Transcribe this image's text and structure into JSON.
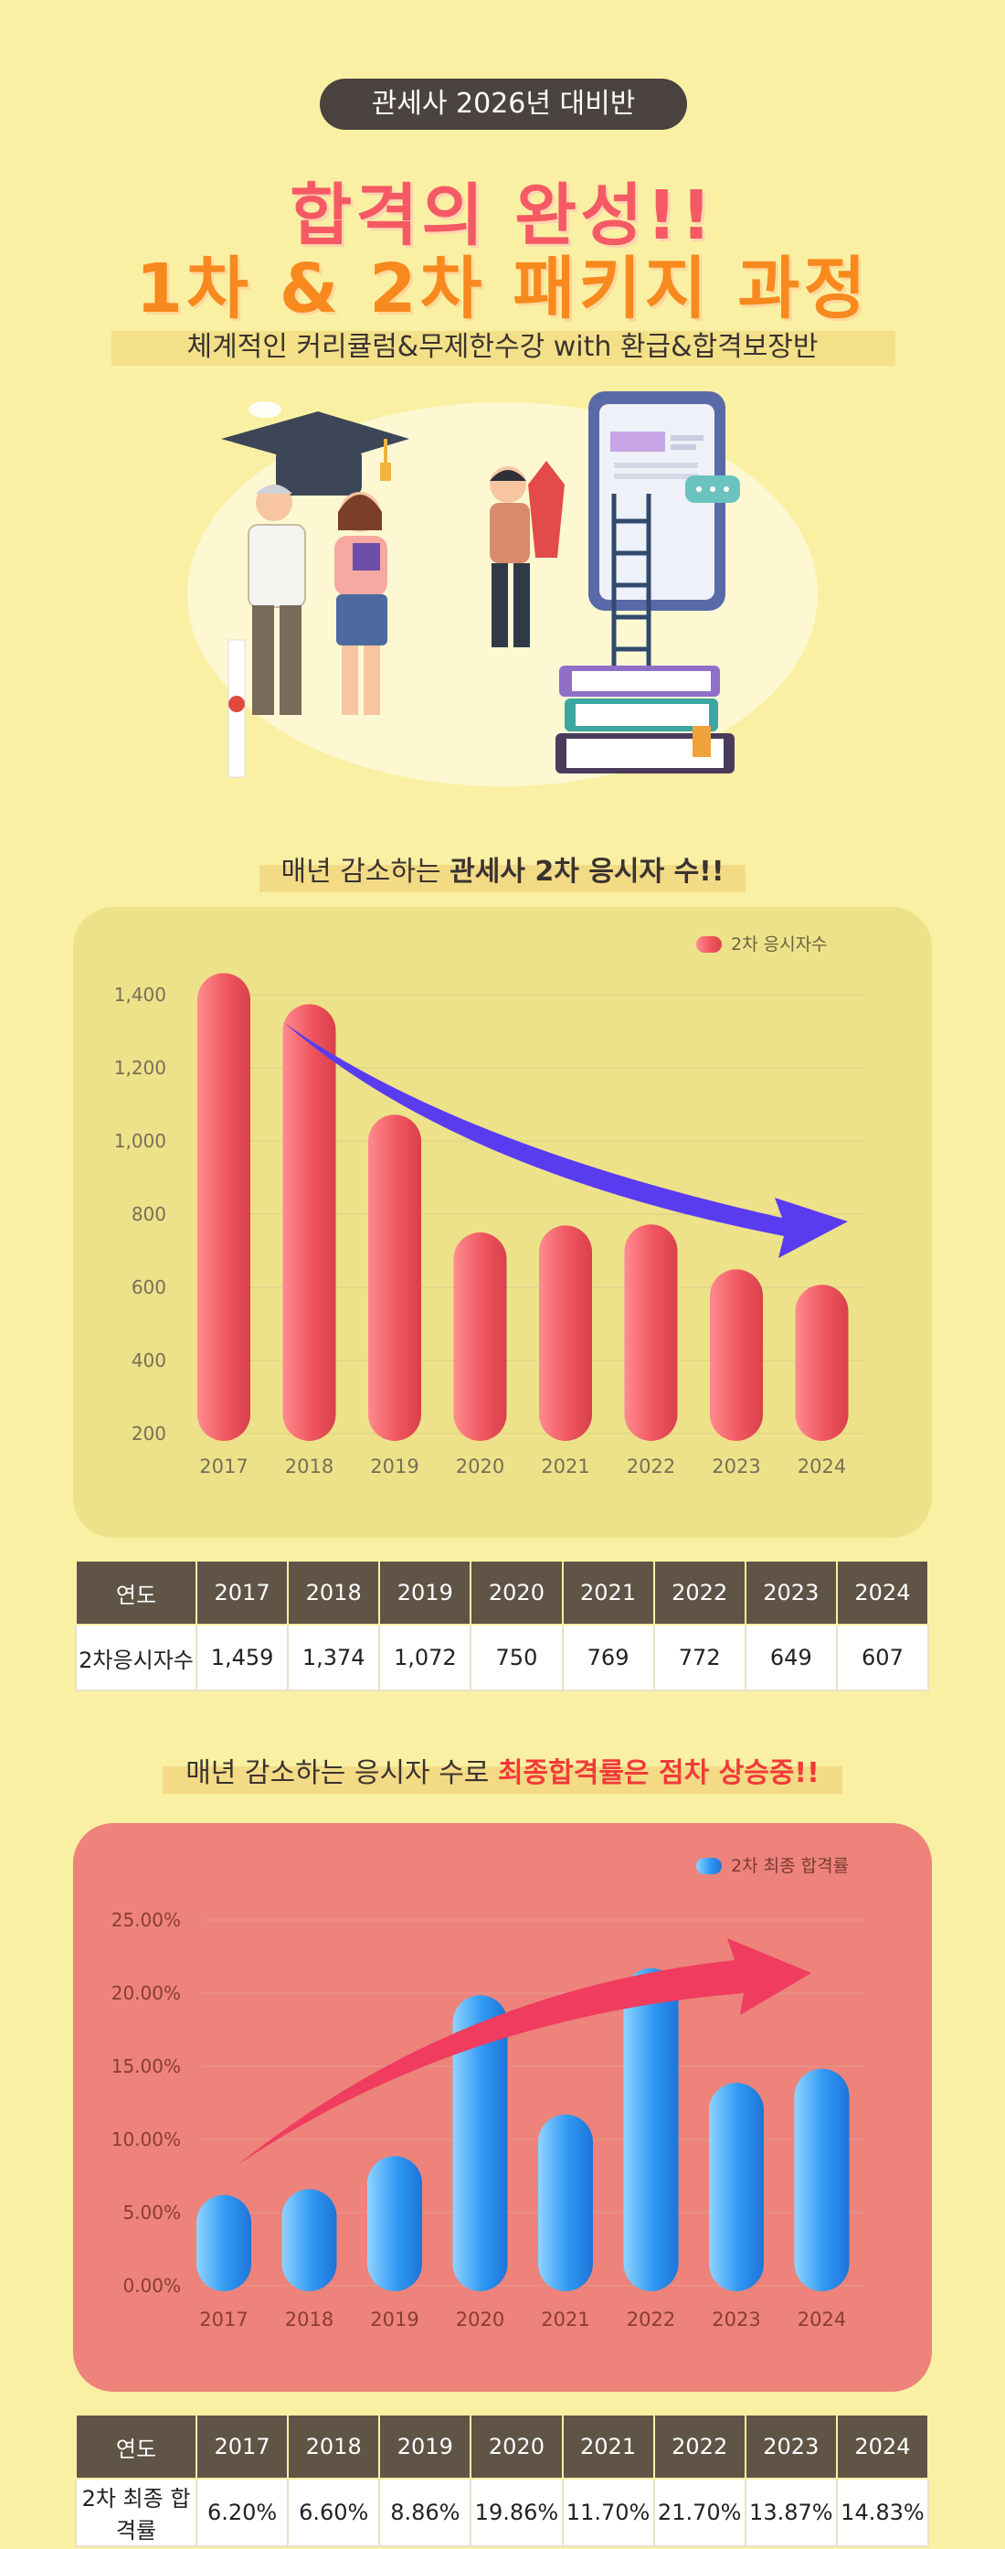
{
  "header": {
    "pill": "관세사 2026년 대비반",
    "headline1": "합격의 완성!!",
    "headline2": "1차 & 2차 패키지 과정",
    "subtitle": "체계적인 커리큘럼&무제한수강 with 환급&합격보장반"
  },
  "section1": {
    "title_prefix": "매년 감소하는 ",
    "title_bold": "관세사 2차 응시자 수!!"
  },
  "section2": {
    "title_prefix": "매년 감소하는 응시자 수로 ",
    "title_highlight": "최종합격률은 점차 상승중!!"
  },
  "colors": {
    "background": "#f9f0a3",
    "bar_red": "#f0565f",
    "bar_blue": "#2a8ff0",
    "arrow_purple": "#5a3cf0",
    "arrow_pink": "#ef3c5f",
    "table_header": "#5f5446"
  },
  "chart_data": [
    {
      "type": "bar",
      "legend": "2차 응시자수",
      "legend_position": "top-right",
      "categories": [
        "2017",
        "2018",
        "2019",
        "2020",
        "2021",
        "2022",
        "2023",
        "2024"
      ],
      "values": [
        1459,
        1374,
        1072,
        750,
        769,
        772,
        649,
        607
      ],
      "ylim": [
        200,
        1400
      ],
      "yticks": [
        "200",
        "400",
        "600",
        "800",
        "1,000",
        "1,200",
        "1,400"
      ],
      "grid": true,
      "annotation": "downward-arrow"
    },
    {
      "type": "bar",
      "legend": "2차 최종 합격률",
      "legend_position": "top-right",
      "categories": [
        "2017",
        "2018",
        "2019",
        "2020",
        "2021",
        "2022",
        "2023",
        "2024"
      ],
      "values": [
        6.2,
        6.6,
        8.86,
        19.86,
        11.7,
        21.7,
        13.87,
        14.83
      ],
      "ylim": [
        0,
        25
      ],
      "yticks": [
        "0.00%",
        "5.00%",
        "10.00%",
        "15.00%",
        "20.00%",
        "25.00%"
      ],
      "grid": true,
      "annotation": "upward-arrow"
    }
  ],
  "table1": {
    "header": [
      "연도",
      "2017",
      "2018",
      "2019",
      "2020",
      "2021",
      "2022",
      "2023",
      "2024"
    ],
    "row": [
      "2차응시자수",
      "1,459",
      "1,374",
      "1,072",
      "750",
      "769",
      "772",
      "649",
      "607"
    ]
  },
  "table2": {
    "header": [
      "연도",
      "2017",
      "2018",
      "2019",
      "2020",
      "2021",
      "2022",
      "2023",
      "2024"
    ],
    "row": [
      "2차 최종 합격률",
      "6.20%",
      "6.60%",
      "8.86%",
      "19.86%",
      "11.70%",
      "21.70%",
      "13.87%",
      "14.83%"
    ]
  }
}
